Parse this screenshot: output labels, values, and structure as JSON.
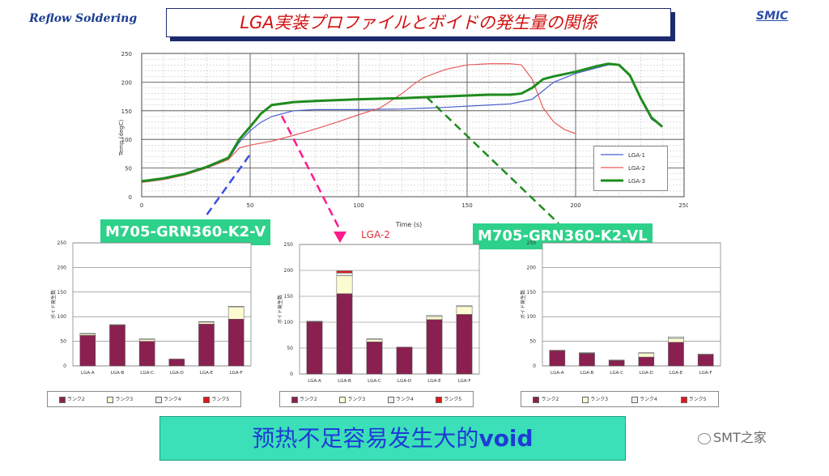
{
  "header": {
    "section": "Reflow Soldering",
    "title": "LGA実装プロファイルとボイドの発生量の関係",
    "logo": "SMIC"
  },
  "chart_data": [
    {
      "type": "line",
      "title": "",
      "xlabel": "Time (s)",
      "ylabel": "Temp (degC)",
      "xlim": [
        0,
        250
      ],
      "ylim": [
        0,
        250
      ],
      "xticks": [
        "0",
        "50",
        "100",
        "150",
        "200",
        "250"
      ],
      "yticks": [
        "0",
        "50",
        "100",
        "150",
        "200",
        "250"
      ],
      "grid": true,
      "legend": "right-middle",
      "series": [
        {
          "name": "LGA-1",
          "color": "#4a5ed0",
          "x": [
            0,
            10,
            20,
            30,
            40,
            45,
            50,
            55,
            60,
            70,
            80,
            100,
            120,
            140,
            160,
            170,
            180,
            190,
            200,
            210,
            215,
            220,
            225,
            230,
            235,
            240
          ],
          "y": [
            25,
            30,
            38,
            50,
            65,
            95,
            115,
            130,
            140,
            150,
            152,
            152,
            153,
            156,
            160,
            162,
            170,
            200,
            215,
            225,
            230,
            230,
            210,
            170,
            135,
            123
          ]
        },
        {
          "name": "LGA-2",
          "color": "#e85a5a",
          "x": [
            0,
            10,
            20,
            30,
            40,
            45,
            50,
            60,
            70,
            80,
            90,
            100,
            110,
            120,
            125,
            130,
            140,
            150,
            160,
            170,
            175,
            180,
            185,
            190,
            195,
            200
          ],
          "y": [
            25,
            30,
            38,
            50,
            65,
            85,
            90,
            97,
            107,
            118,
            130,
            143,
            155,
            180,
            195,
            208,
            222,
            230,
            232,
            232,
            230,
            205,
            155,
            130,
            117,
            110
          ]
        },
        {
          "name": "LGA-3",
          "color": "#1e8c1e",
          "x": [
            0,
            10,
            20,
            30,
            40,
            45,
            50,
            55,
            60,
            70,
            80,
            100,
            120,
            140,
            160,
            170,
            175,
            180,
            185,
            190,
            200,
            210,
            215,
            220,
            225,
            230,
            235,
            240
          ],
          "y": [
            27,
            32,
            40,
            52,
            68,
            100,
            122,
            145,
            160,
            165,
            167,
            170,
            172,
            175,
            178,
            178,
            180,
            190,
            205,
            210,
            218,
            228,
            232,
            230,
            212,
            172,
            138,
            122
          ]
        }
      ]
    },
    {
      "type": "bar",
      "stacked": true,
      "title": "",
      "ylabel": "ボイド発生数",
      "ylim": [
        0,
        250
      ],
      "yticks": [
        "0",
        "50",
        "100",
        "150",
        "200",
        "250"
      ],
      "categories": [
        "LGA-A",
        "LGA-B",
        "LGA-C",
        "LGA-D",
        "LGA-E",
        "LGA-F"
      ],
      "series": [
        {
          "name": "ランク2",
          "color": "#8a2050",
          "values": [
            62,
            83,
            50,
            14,
            85,
            95
          ]
        },
        {
          "name": "ランク3",
          "color": "#fdfbd0",
          "values": [
            3,
            0,
            4,
            0,
            4,
            25
          ]
        },
        {
          "name": "ランク4",
          "color": "#e8f0f0",
          "values": [
            1,
            1,
            1,
            0,
            1,
            1
          ]
        },
        {
          "name": "ランク5",
          "color": "#e01818",
          "values": [
            0,
            0,
            0,
            0,
            0,
            0
          ]
        }
      ]
    },
    {
      "type": "bar",
      "stacked": true,
      "title": "LGA-2",
      "ylabel": "ボイド発生数",
      "ylim": [
        0,
        250
      ],
      "yticks": [
        "0",
        "50",
        "100",
        "150",
        "200",
        "250"
      ],
      "categories": [
        "LGA-A",
        "LGA-B",
        "LGA-C",
        "LGA-D",
        "LGA-E",
        "LGA-F"
      ],
      "series": [
        {
          "name": "ランク2",
          "color": "#8a2050",
          "values": [
            101,
            155,
            62,
            52,
            105,
            115
          ]
        },
        {
          "name": "ランク3",
          "color": "#fdfbd0",
          "values": [
            0,
            35,
            5,
            0,
            6,
            15
          ]
        },
        {
          "name": "ランク4",
          "color": "#e8f0f0",
          "values": [
            1,
            5,
            1,
            0,
            2,
            2
          ]
        },
        {
          "name": "ランク5",
          "color": "#e01818",
          "values": [
            0,
            4,
            0,
            0,
            0,
            0
          ]
        }
      ]
    },
    {
      "type": "bar",
      "stacked": true,
      "title": "",
      "ylabel": "ボイド発生数",
      "ylim": [
        0,
        250
      ],
      "yticks": [
        "0",
        "50",
        "100",
        "150",
        "200",
        "250"
      ],
      "categories": [
        "LGA-A",
        "LGA-B",
        "LGA-C",
        "LGA-D",
        "LGA-E",
        "LGA-F"
      ],
      "series": [
        {
          "name": "ランク2",
          "color": "#8a2050",
          "values": [
            31,
            25,
            11,
            18,
            48,
            23
          ]
        },
        {
          "name": "ランク3",
          "color": "#fdfbd0",
          "values": [
            0,
            1,
            0,
            8,
            8,
            0
          ]
        },
        {
          "name": "ランク4",
          "color": "#e8f0f0",
          "values": [
            1,
            1,
            1,
            1,
            3,
            1
          ]
        },
        {
          "name": "ランク5",
          "color": "#e01818",
          "values": [
            0,
            0,
            0,
            0,
            0,
            0
          ]
        }
      ]
    }
  ],
  "annotations": {
    "label_left": "M705-GRN360-K2-V",
    "label_right": "M705-GRN360-K2-VL",
    "banner_prefix": "预热不足容易发生大的",
    "banner_suffix": "void",
    "watermark": "SMT之家"
  }
}
